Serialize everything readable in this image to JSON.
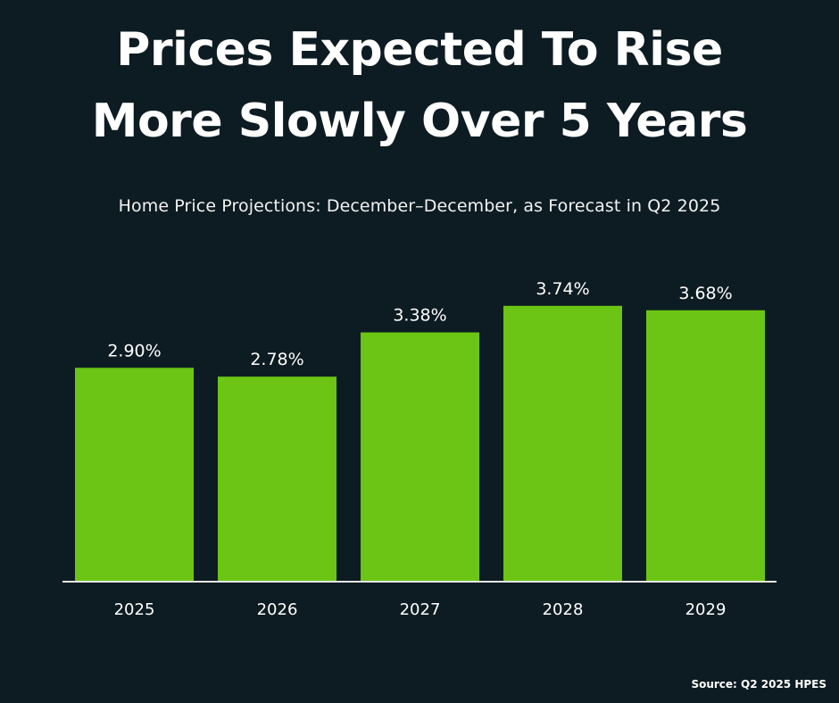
{
  "header": {
    "title_line1": "Prices Expected To Rise",
    "title_line2": "More Slowly Over 5 Years",
    "subtitle": "Home Price Projections: December–December, as Forecast in Q2 2025"
  },
  "footer": {
    "source": "Source: Q2 2025 HPES"
  },
  "colors": {
    "background": "#0d1c22",
    "bar": "#6cc514",
    "text": "#ffffff",
    "axis": "#e6e6e6"
  },
  "chart_data": {
    "type": "bar",
    "title": "Prices Expected To Rise More Slowly Over 5 Years",
    "subtitle": "Home Price Projections: December–December, as Forecast in Q2 2025",
    "categories": [
      "2025",
      "2026",
      "2027",
      "2028",
      "2029"
    ],
    "values": [
      2.9,
      2.78,
      3.38,
      3.74,
      3.68
    ],
    "data_labels": [
      "2.90%",
      "2.78%",
      "3.38%",
      "3.74%",
      "3.68%"
    ],
    "ylim": [
      0,
      4.0
    ],
    "grid": false,
    "legend": "none"
  }
}
